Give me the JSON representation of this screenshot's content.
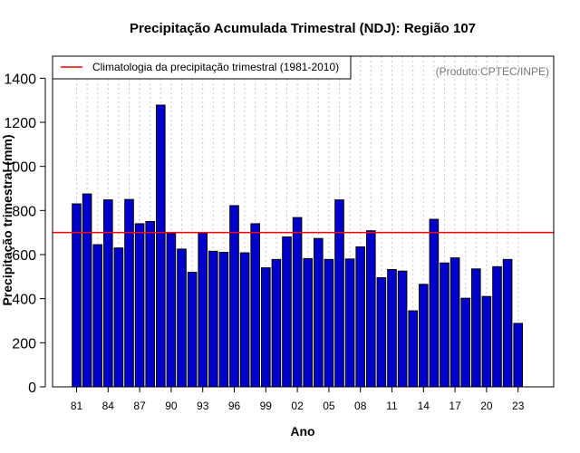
{
  "chart_data": {
    "type": "bar",
    "title": "Precipitação Acumulada Trimestral (NDJ): Região 107",
    "xlabel": "Ano",
    "ylabel": "Precipitação trimestral (mm)",
    "credit": "(Produto:CPTEC/INPE)",
    "ylim": [
      0,
      1500
    ],
    "y_ticks": [
      0,
      200,
      400,
      600,
      800,
      1000,
      1200,
      1400
    ],
    "x_tick_years": [
      1981,
      1984,
      1987,
      1990,
      1993,
      1996,
      1999,
      2002,
      2005,
      2008,
      2011,
      2014,
      2017,
      2020,
      2023
    ],
    "x_tick_labels": [
      "81",
      "84",
      "87",
      "90",
      "93",
      "96",
      "99",
      "02",
      "05",
      "08",
      "11",
      "14",
      "17",
      "20",
      "23"
    ],
    "categories": [
      1981,
      1982,
      1983,
      1984,
      1985,
      1986,
      1987,
      1988,
      1989,
      1990,
      1991,
      1992,
      1993,
      1994,
      1995,
      1996,
      1997,
      1998,
      1999,
      2000,
      2001,
      2002,
      2003,
      2004,
      2005,
      2006,
      2007,
      2008,
      2009,
      2010,
      2011,
      2012,
      2013,
      2014,
      2015,
      2016,
      2017,
      2018,
      2019,
      2020,
      2021,
      2022,
      2023
    ],
    "values": [
      830,
      875,
      645,
      848,
      630,
      850,
      740,
      750,
      1278,
      695,
      625,
      520,
      698,
      615,
      610,
      822,
      608,
      740,
      540,
      578,
      680,
      768,
      582,
      673,
      578,
      848,
      580,
      635,
      708,
      495,
      532,
      525,
      345,
      465,
      760,
      562,
      585,
      402,
      535,
      410,
      545,
      578,
      288
    ],
    "bar_color": "#0000CD",
    "reference_line": {
      "label": "Climatologia da precipitação trimestral (1981-2010)",
      "value": 700,
      "color": "#FF0000"
    },
    "legend_position": "top-left",
    "grid": "vertical-dotted"
  }
}
